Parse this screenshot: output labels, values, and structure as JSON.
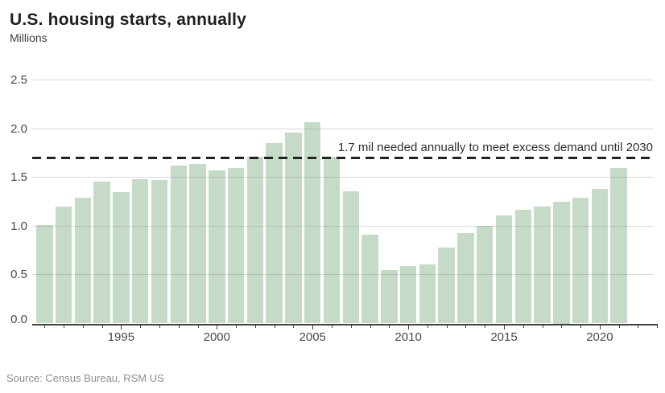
{
  "header": {
    "title": "U.S. housing starts, annually",
    "subtitle": "Millions"
  },
  "chart_data": {
    "type": "bar",
    "title": "U.S. housing starts, annually",
    "ylabel": "Millions",
    "xlabel": "",
    "categories": [
      1991,
      1992,
      1993,
      1994,
      1995,
      1996,
      1997,
      1998,
      1999,
      2000,
      2001,
      2002,
      2003,
      2004,
      2005,
      2006,
      2007,
      2008,
      2009,
      2010,
      2011,
      2012,
      2013,
      2014,
      2015,
      2016,
      2017,
      2018,
      2019,
      2020,
      2021
    ],
    "values": [
      1.01,
      1.2,
      1.29,
      1.46,
      1.35,
      1.48,
      1.47,
      1.62,
      1.64,
      1.57,
      1.6,
      1.71,
      1.85,
      1.96,
      2.07,
      1.71,
      1.36,
      0.91,
      0.55,
      0.59,
      0.61,
      0.78,
      0.93,
      1.0,
      1.11,
      1.17,
      1.2,
      1.25,
      1.29,
      1.38,
      1.6
    ],
    "ylim": [
      0,
      2.5
    ],
    "y_tick_labels": [
      "2.5",
      "2.0",
      "1.5",
      "1.0",
      "0.5",
      "0.0"
    ],
    "x_axis_ticks_range": [
      1991,
      2023
    ],
    "x_labeled_years": [
      1995,
      2000,
      2005,
      2010,
      2015,
      2020
    ],
    "grid": "horizontal",
    "legend": "none",
    "bar_color": "#c6dbc7",
    "reference_line": {
      "value": 1.7,
      "style": "dashed",
      "color": "#222222",
      "label": "1.7 mil needed annually to meet excess demand until 2030"
    }
  },
  "footer": {
    "source": "Source: Census Bureau, RSM US"
  }
}
